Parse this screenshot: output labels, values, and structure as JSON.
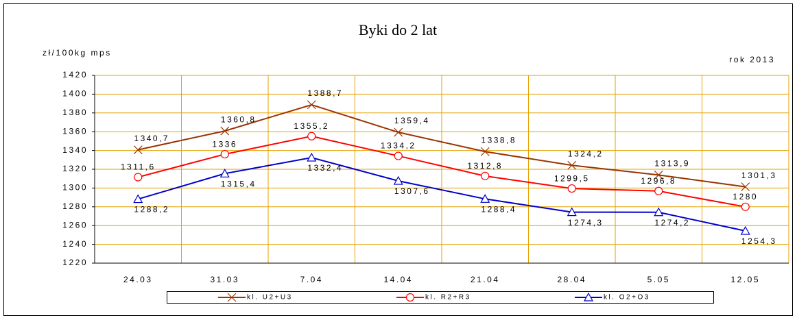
{
  "chart_data": {
    "type": "line",
    "title": "Byki do 2 lat",
    "y_label": "zł/100kg mps",
    "annotation": "rok 2013",
    "categories": [
      "24.03",
      "31.03",
      "7.04",
      "14.04",
      "21.04",
      "28.04",
      "5.05",
      "12.05"
    ],
    "series": [
      {
        "name": "kl. U2+U3",
        "color": "#993300",
        "marker": "x",
        "values": [
          1340.7,
          1360.8,
          1388.7,
          1359.4,
          1338.8,
          1324.2,
          1313.9,
          1301.3
        ],
        "value_labels": [
          "1340,7",
          "1360,8",
          "1388,7",
          "1359,4",
          "1338,8",
          "1324,2",
          "1313,9",
          "1301,3"
        ]
      },
      {
        "name": "kl. R2+R3",
        "color": "#ff0000",
        "marker": "circle",
        "values": [
          1311.6,
          1336,
          1355.2,
          1334.2,
          1312.8,
          1299.5,
          1296.8,
          1280
        ],
        "value_labels": [
          "1311,6",
          "1336",
          "1355,2",
          "1334,2",
          "1312,8",
          "1299,5",
          "1296,8",
          "1280"
        ]
      },
      {
        "name": "kl. O2+O3",
        "color": "#0000cc",
        "marker": "triangle",
        "values": [
          1288.2,
          1315.4,
          1332.4,
          1307.6,
          1288.4,
          1274.3,
          1274.2,
          1254.3
        ],
        "value_labels": [
          "1288,2",
          "1315,4",
          "1332,4",
          "1307,6",
          "1288,4",
          "1274,3",
          "1274,2",
          "1254,3"
        ]
      }
    ],
    "ylim": [
      1220,
      1420
    ],
    "yticks": [
      1220,
      1240,
      1260,
      1280,
      1300,
      1320,
      1340,
      1360,
      1380,
      1400,
      1420
    ],
    "grid": true,
    "grid_color": "#e6a000",
    "legend": "bottom"
  }
}
